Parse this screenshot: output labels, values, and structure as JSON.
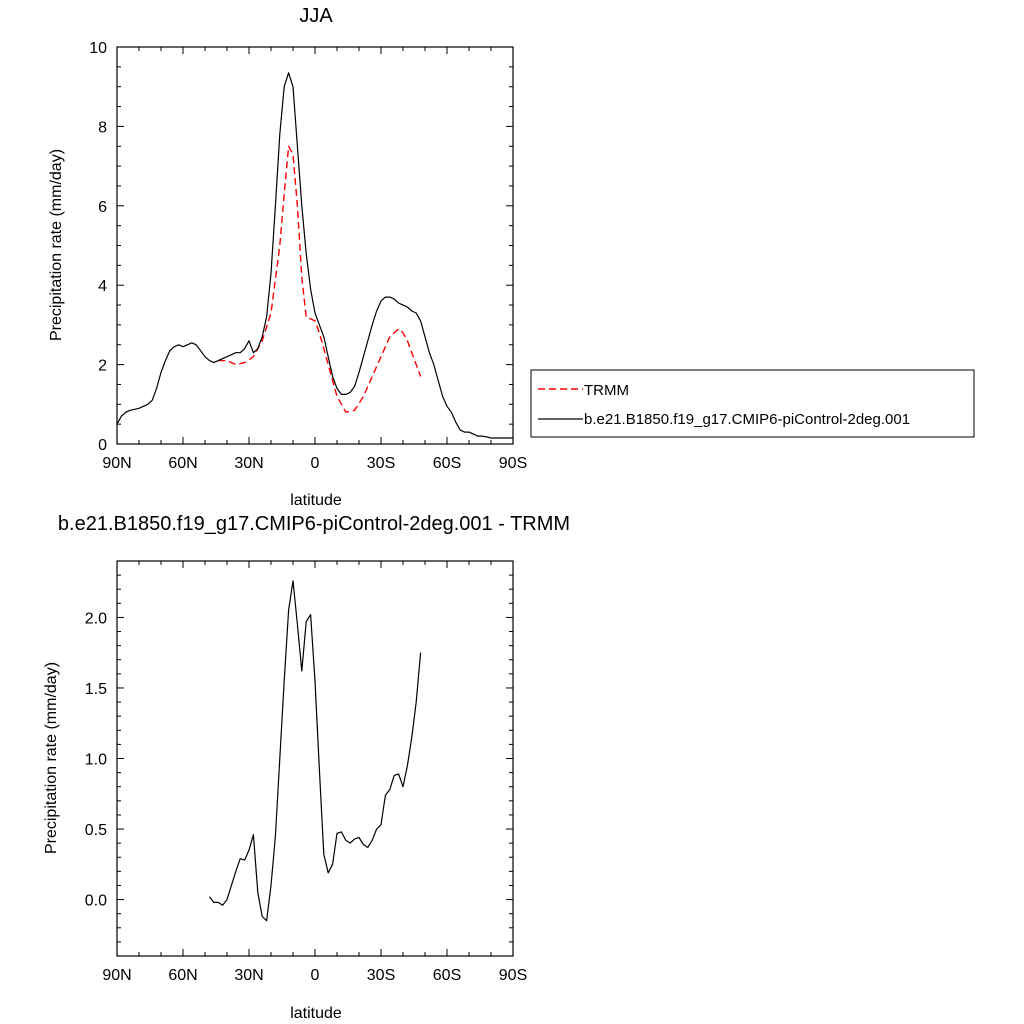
{
  "chart_data": [
    {
      "type": "line",
      "title": "JJA",
      "xlabel": "latitude",
      "ylabel": "Precipitation rate (mm/day)",
      "xlim": [
        90,
        -90
      ],
      "ylim": [
        0,
        10
      ],
      "x_ticks": [
        90,
        60,
        30,
        0,
        -30,
        -60,
        -90
      ],
      "x_tick_labels": [
        "90N",
        "60N",
        "30N",
        "0",
        "30S",
        "60S",
        "90S"
      ],
      "y_ticks": [
        0,
        2,
        4,
        6,
        8,
        10
      ],
      "y_tick_labels": [
        "0",
        "2",
        "4",
        "6",
        "8",
        "10"
      ],
      "legend_position": "right",
      "series": [
        {
          "name": "TRMM",
          "color": "#ff0000",
          "dash": "dashed",
          "x": [
            44,
            40,
            36,
            32,
            28,
            24,
            20,
            16,
            14,
            12,
            10,
            8,
            6,
            4,
            2,
            0,
            -2,
            -4,
            -6,
            -10,
            -14,
            -18,
            -22,
            -26,
            -30,
            -34,
            -38,
            -40,
            -42,
            -44,
            -46,
            -48
          ],
          "y": [
            2.1,
            2.1,
            2.0,
            2.05,
            2.2,
            2.6,
            3.3,
            5.0,
            6.3,
            7.5,
            7.3,
            6.0,
            4.2,
            3.2,
            3.15,
            3.1,
            2.8,
            2.4,
            2.0,
            1.2,
            0.8,
            0.85,
            1.2,
            1.7,
            2.2,
            2.7,
            2.9,
            2.8,
            2.6,
            2.3,
            2.0,
            1.7
          ]
        },
        {
          "name": "b.e21.B1850.f19_g17.CMIP6-piControl-2deg.001",
          "color": "#000000",
          "dash": "solid",
          "x": [
            90,
            88,
            86,
            84,
            80,
            76,
            74,
            72,
            70,
            68,
            66,
            64,
            62,
            60,
            58,
            56,
            54,
            52,
            50,
            48,
            46,
            44,
            42,
            40,
            36,
            34,
            32,
            30,
            28,
            26,
            24,
            22,
            20,
            18,
            16,
            14,
            12,
            10,
            8,
            6,
            4,
            2,
            0,
            -2,
            -4,
            -6,
            -8,
            -10,
            -12,
            -14,
            -16,
            -18,
            -20,
            -22,
            -24,
            -26,
            -28,
            -30,
            -32,
            -34,
            -36,
            -38,
            -40,
            -42,
            -44,
            -46,
            -48,
            -50,
            -52,
            -54,
            -56,
            -58,
            -60,
            -62,
            -64,
            -66,
            -68,
            -70,
            -72,
            -74,
            -76,
            -78,
            -80,
            -82,
            -84,
            -86,
            -88,
            -90
          ],
          "y": [
            0.5,
            0.7,
            0.8,
            0.85,
            0.9,
            1.0,
            1.1,
            1.4,
            1.8,
            2.1,
            2.35,
            2.45,
            2.5,
            2.45,
            2.5,
            2.55,
            2.5,
            2.35,
            2.2,
            2.1,
            2.05,
            2.1,
            2.15,
            2.2,
            2.3,
            2.3,
            2.4,
            2.6,
            2.3,
            2.4,
            2.7,
            3.2,
            4.3,
            6.0,
            7.8,
            9.0,
            9.35,
            9.0,
            7.5,
            6.0,
            4.8,
            3.9,
            3.3,
            3.0,
            2.7,
            2.2,
            1.7,
            1.4,
            1.25,
            1.25,
            1.3,
            1.45,
            1.8,
            2.2,
            2.6,
            3.0,
            3.35,
            3.6,
            3.7,
            3.7,
            3.65,
            3.55,
            3.5,
            3.45,
            3.35,
            3.3,
            3.1,
            2.7,
            2.3,
            2.0,
            1.6,
            1.2,
            0.95,
            0.8,
            0.55,
            0.35,
            0.3,
            0.3,
            0.25,
            0.2,
            0.2,
            0.18,
            0.15,
            0.15,
            0.15,
            0.15,
            0.15,
            0.15
          ]
        }
      ]
    },
    {
      "type": "line",
      "title": "b.e21.B1850.f19_g17.CMIP6-piControl-2deg.001 - TRMM",
      "xlabel": "latitude",
      "ylabel": "Precipitation rate (mm/day)",
      "xlim": [
        90,
        -90
      ],
      "ylim": [
        -0.4,
        2.4
      ],
      "x_ticks": [
        90,
        60,
        30,
        0,
        -30,
        -60,
        -90
      ],
      "x_tick_labels": [
        "90N",
        "60N",
        "30N",
        "0",
        "30S",
        "60S",
        "90S"
      ],
      "y_ticks": [
        0.0,
        0.5,
        1.0,
        1.5,
        2.0
      ],
      "y_tick_labels": [
        "0.0",
        "0.5",
        "1.0",
        "1.5",
        "2.0"
      ],
      "series": [
        {
          "color": "#000000",
          "dash": "solid",
          "x": [
            48,
            46,
            44,
            42,
            40,
            38,
            36,
            34,
            32,
            30,
            28,
            26,
            24,
            22,
            20,
            18,
            16,
            14,
            12,
            10,
            8,
            6,
            4,
            2,
            0,
            -2,
            -4,
            -6,
            -8,
            -10,
            -12,
            -14,
            -16,
            -18,
            -20,
            -22,
            -24,
            -26,
            -28,
            -30,
            -32,
            -34,
            -36,
            -38,
            -40,
            -42,
            -44,
            -46,
            -48
          ],
          "y": [
            0.02,
            -0.02,
            -0.02,
            -0.04,
            0.0,
            0.1,
            0.2,
            0.29,
            0.28,
            0.35,
            0.46,
            0.05,
            -0.12,
            -0.15,
            0.1,
            0.45,
            1.0,
            1.55,
            2.05,
            2.26,
            1.95,
            1.62,
            1.97,
            2.02,
            1.55,
            0.92,
            0.32,
            0.19,
            0.25,
            0.47,
            0.48,
            0.42,
            0.4,
            0.43,
            0.44,
            0.39,
            0.37,
            0.42,
            0.5,
            0.53,
            0.74,
            0.78,
            0.88,
            0.89,
            0.8,
            0.95,
            1.15,
            1.4,
            1.75
          ]
        }
      ]
    }
  ]
}
